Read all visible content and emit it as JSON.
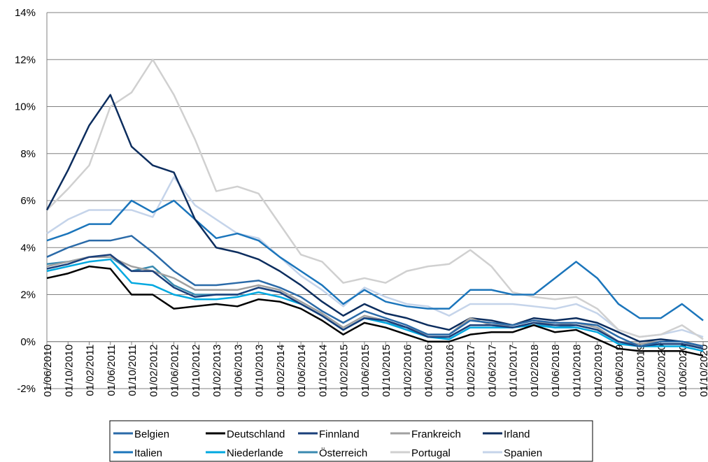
{
  "chart_data": {
    "type": "line",
    "categories": [
      "01/06/2010",
      "01/10/2010",
      "01/02/2011",
      "01/06/2011",
      "01/10/2011",
      "01/02/2012",
      "01/06/2012",
      "01/10/2012",
      "01/02/2013",
      "01/06/2013",
      "01/10/2013",
      "01/02/2014",
      "01/06/2014",
      "01/10/2014",
      "01/02/2015",
      "01/06/2015",
      "01/10/2015",
      "01/02/2016",
      "01/06/2016",
      "01/10/2016",
      "01/02/2017",
      "01/06/2017",
      "01/10/2017",
      "01/02/2018",
      "01/06/2018",
      "01/10/2018",
      "01/02/2019",
      "01/06/2019",
      "01/10/2019",
      "01/02/2020",
      "01/06/2020",
      "01/10/2020"
    ],
    "ylim": [
      -2,
      14
    ],
    "yticks": [
      {
        "value": -2,
        "label": "-2%"
      },
      {
        "value": 0,
        "label": "0%"
      },
      {
        "value": 2,
        "label": "2%"
      },
      {
        "value": 4,
        "label": "4%"
      },
      {
        "value": 6,
        "label": "6%"
      },
      {
        "value": 8,
        "label": "8%"
      },
      {
        "value": 10,
        "label": "10%"
      },
      {
        "value": 12,
        "label": "12%"
      },
      {
        "value": 14,
        "label": "14%"
      }
    ],
    "grid": true,
    "series": [
      {
        "name": "Belgien",
        "color": "#2a6aa8",
        "values": [
          3.6,
          4.0,
          4.3,
          4.3,
          4.5,
          3.8,
          3.0,
          2.4,
          2.4,
          2.5,
          2.6,
          2.3,
          1.9,
          1.3,
          0.8,
          1.3,
          1.0,
          0.7,
          0.3,
          0.3,
          0.9,
          0.8,
          0.7,
          0.9,
          0.8,
          0.8,
          0.7,
          0.2,
          -0.2,
          0.0,
          0.0,
          -0.2
        ]
      },
      {
        "name": "Deutschland",
        "color": "#000000",
        "values": [
          2.7,
          2.9,
          3.2,
          3.1,
          2.0,
          2.0,
          1.4,
          1.5,
          1.6,
          1.5,
          1.8,
          1.7,
          1.4,
          0.9,
          0.3,
          0.8,
          0.6,
          0.3,
          0.0,
          0.0,
          0.3,
          0.4,
          0.4,
          0.7,
          0.4,
          0.5,
          0.1,
          -0.3,
          -0.4,
          -0.4,
          -0.4,
          -0.6
        ]
      },
      {
        "name": "Finnland",
        "color": "#1a3f7a",
        "values": [
          3.1,
          3.3,
          3.6,
          3.7,
          3.0,
          3.0,
          2.3,
          1.9,
          2.0,
          2.0,
          2.3,
          2.1,
          1.6,
          1.1,
          0.5,
          1.0,
          0.9,
          0.6,
          0.2,
          0.2,
          0.7,
          0.7,
          0.6,
          0.8,
          0.7,
          0.7,
          0.5,
          0.0,
          -0.2,
          -0.1,
          -0.1,
          -0.3
        ]
      },
      {
        "name": "Frankreich",
        "color": "#a0a0a0",
        "values": [
          3.2,
          3.4,
          3.6,
          3.6,
          3.2,
          3.0,
          2.7,
          2.2,
          2.2,
          2.2,
          2.4,
          2.2,
          1.7,
          1.2,
          0.6,
          1.1,
          0.9,
          0.6,
          0.3,
          0.3,
          1.0,
          0.7,
          0.7,
          0.9,
          0.7,
          0.8,
          0.6,
          0.0,
          -0.1,
          0.0,
          0.0,
          -0.3
        ]
      },
      {
        "name": "Irland",
        "color": "#0c2d5e",
        "values": [
          5.6,
          7.3,
          9.2,
          10.5,
          8.3,
          7.5,
          7.2,
          5.2,
          4.0,
          3.8,
          3.5,
          3.0,
          2.4,
          1.7,
          1.1,
          1.6,
          1.2,
          1.0,
          0.7,
          0.5,
          1.0,
          0.9,
          0.7,
          1.0,
          0.9,
          1.0,
          0.8,
          0.4,
          0.0,
          0.1,
          0.0,
          -0.2
        ]
      },
      {
        "name": "Italien",
        "color": "#1b75bb",
        "values": [
          4.3,
          4.6,
          5.0,
          5.0,
          6.0,
          5.5,
          6.0,
          5.2,
          4.4,
          4.6,
          4.3,
          3.6,
          3.0,
          2.4,
          1.6,
          2.2,
          1.7,
          1.5,
          1.4,
          1.4,
          2.2,
          2.2,
          2.0,
          2.0,
          2.7,
          3.4,
          2.7,
          1.6,
          1.0,
          1.0,
          1.6,
          0.9
        ]
      },
      {
        "name": "Niederlande",
        "color": "#00a8e0",
        "values": [
          3.0,
          3.2,
          3.4,
          3.5,
          2.5,
          2.4,
          2.0,
          1.8,
          1.8,
          1.9,
          2.1,
          1.9,
          1.6,
          1.1,
          0.5,
          1.0,
          0.8,
          0.5,
          0.2,
          0.1,
          0.6,
          0.6,
          0.6,
          0.7,
          0.6,
          0.6,
          0.4,
          -0.1,
          -0.2,
          -0.2,
          -0.2,
          -0.4
        ]
      },
      {
        "name": "Österreich",
        "color": "#3a8ab0",
        "values": [
          3.3,
          3.4,
          3.6,
          3.6,
          3.0,
          3.2,
          2.4,
          2.0,
          2.0,
          2.0,
          2.3,
          2.1,
          1.6,
          1.1,
          0.5,
          1.0,
          0.8,
          0.6,
          0.2,
          0.2,
          0.7,
          0.7,
          0.6,
          0.8,
          0.6,
          0.7,
          0.5,
          0.0,
          -0.2,
          -0.1,
          -0.1,
          -0.3
        ]
      },
      {
        "name": "Portugal",
        "color": "#d0d0d0",
        "values": [
          5.6,
          6.5,
          7.5,
          10.0,
          10.6,
          12.0,
          10.5,
          8.6,
          6.4,
          6.6,
          6.3,
          5.0,
          3.7,
          3.4,
          2.5,
          2.7,
          2.5,
          3.0,
          3.2,
          3.3,
          3.9,
          3.2,
          2.1,
          1.9,
          1.8,
          1.9,
          1.4,
          0.5,
          0.2,
          0.3,
          0.7,
          0.1
        ]
      },
      {
        "name": "Spanien",
        "color": "#c5d4ea",
        "values": [
          4.6,
          5.2,
          5.6,
          5.6,
          5.6,
          5.3,
          7.0,
          5.8,
          5.2,
          4.6,
          4.4,
          3.6,
          2.8,
          2.2,
          1.5,
          2.3,
          1.9,
          1.6,
          1.5,
          1.1,
          1.6,
          1.6,
          1.6,
          1.5,
          1.4,
          1.6,
          1.2,
          0.5,
          0.2,
          0.3,
          0.5,
          0.2
        ]
      }
    ]
  }
}
